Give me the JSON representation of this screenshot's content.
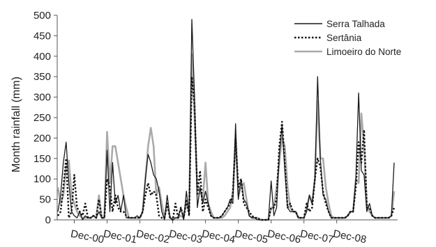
{
  "chart_data": {
    "type": "line",
    "title": "",
    "xlabel": "",
    "ylabel": "Month rainfall (mm)",
    "ylim": [
      0,
      500
    ],
    "yticks": [
      0,
      50,
      100,
      150,
      200,
      250,
      300,
      350,
      400,
      450,
      500
    ],
    "xticks": [
      "Dec-00",
      "Dec-01",
      "Dec-02",
      "Dec-03",
      "Dec-04",
      "Dec-05",
      "Dec-06",
      "Dec-07",
      "Dec-08"
    ],
    "legend_position": "top-right",
    "grid": false,
    "series": [
      {
        "name": "Serra Talhada",
        "color": "#1a1a1a",
        "dash": "solid",
        "values": [
          20,
          60,
          140,
          190,
          90,
          20,
          10,
          5,
          20,
          0,
          10,
          5,
          5,
          10,
          5,
          20,
          5,
          5,
          170,
          20,
          140,
          40,
          60,
          20,
          60,
          5,
          5,
          5,
          5,
          10,
          5,
          20,
          100,
          160,
          140,
          110,
          100,
          70,
          20,
          0,
          60,
          5,
          0,
          5,
          5,
          30,
          0,
          70,
          10,
          490,
          300,
          30,
          80,
          40,
          70,
          40,
          10,
          5,
          5,
          5,
          10,
          20,
          30,
          50,
          40,
          235,
          50,
          100,
          50,
          40,
          10,
          5,
          5,
          0,
          0,
          0,
          0,
          0,
          95,
          10,
          30,
          160,
          230,
          120,
          30,
          20,
          20,
          20,
          5,
          5,
          5,
          20,
          60,
          40,
          100,
          350,
          150,
          60,
          50,
          20,
          5,
          5,
          5,
          5,
          5,
          5,
          10,
          20,
          20,
          100,
          310,
          120,
          110,
          20,
          40,
          10,
          5,
          5,
          5,
          5,
          5,
          5,
          10,
          140
        ]
      },
      {
        "name": "Sertânia",
        "color": "#111111",
        "dash": "dotted",
        "values": [
          10,
          20,
          80,
          150,
          5,
          20,
          110,
          30,
          20,
          10,
          40,
          5,
          5,
          10,
          5,
          50,
          5,
          5,
          100,
          80,
          20,
          60,
          30,
          20,
          20,
          10,
          5,
          5,
          5,
          5,
          5,
          20,
          60,
          90,
          60,
          70,
          60,
          10,
          5,
          5,
          40,
          5,
          0,
          40,
          5,
          30,
          5,
          50,
          10,
          350,
          280,
          60,
          120,
          20,
          50,
          30,
          10,
          5,
          5,
          5,
          10,
          20,
          30,
          40,
          60,
          200,
          80,
          100,
          40,
          30,
          20,
          10,
          5,
          5,
          0,
          0,
          0,
          0,
          30,
          30,
          50,
          180,
          240,
          140,
          30,
          40,
          20,
          20,
          5,
          5,
          5,
          40,
          20,
          30,
          100,
          150,
          130,
          70,
          40,
          20,
          5,
          5,
          5,
          5,
          5,
          5,
          10,
          20,
          20,
          80,
          190,
          140,
          220,
          30,
          30,
          10,
          5,
          5,
          5,
          5,
          5,
          5,
          10,
          30
        ]
      },
      {
        "name": "Limoeiro do Norte",
        "color": "#aaaaaa",
        "dash": "solid",
        "values": [
          80,
          40,
          60,
          130,
          145,
          60,
          40,
          20,
          10,
          5,
          5,
          5,
          5,
          10,
          5,
          60,
          5,
          5,
          215,
          90,
          180,
          180,
          140,
          100,
          60,
          30,
          5,
          5,
          5,
          5,
          5,
          20,
          100,
          180,
          225,
          180,
          60,
          80,
          40,
          5,
          40,
          5,
          5,
          5,
          5,
          10,
          5,
          40,
          20,
          405,
          250,
          80,
          70,
          50,
          140,
          40,
          20,
          5,
          5,
          5,
          5,
          10,
          20,
          30,
          70,
          200,
          60,
          80,
          90,
          50,
          10,
          5,
          5,
          5,
          0,
          0,
          0,
          0,
          30,
          30,
          80,
          140,
          200,
          180,
          80,
          30,
          20,
          20,
          5,
          5,
          5,
          30,
          60,
          40,
          100,
          290,
          150,
          150,
          80,
          40,
          10,
          5,
          5,
          5,
          5,
          5,
          10,
          20,
          20,
          100,
          90,
          260,
          180,
          40,
          20,
          10,
          5,
          5,
          5,
          5,
          5,
          5,
          10,
          70
        ]
      }
    ]
  }
}
